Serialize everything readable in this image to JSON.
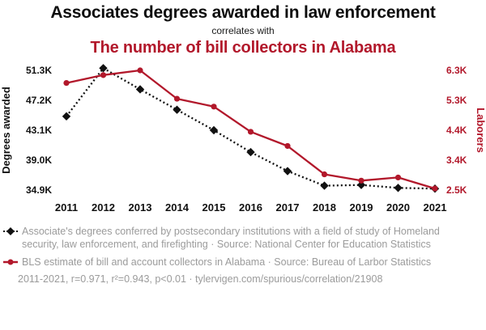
{
  "header": {
    "title": "Associates degrees awarded in law enforcement",
    "connector": "correlates with",
    "subtitle": "The number of bill collectors in Alabama"
  },
  "colors": {
    "accent_red": "#b2182b",
    "series_black": "#111111",
    "legend_gray": "#9b9b9b"
  },
  "chart_data": {
    "type": "line",
    "x": [
      2011,
      2012,
      2013,
      2014,
      2015,
      2016,
      2017,
      2018,
      2019,
      2020,
      2021
    ],
    "series": [
      {
        "name": "Degrees awarded",
        "slug": "degrees-awarded",
        "axis": "left",
        "color": "#111111",
        "style": "dotted",
        "marker": "diamond",
        "values": [
          45.0,
          51.6,
          48.7,
          45.9,
          43.1,
          40.1,
          37.5,
          35.5,
          35.6,
          35.2,
          35.1
        ]
      },
      {
        "name": "Laborers",
        "slug": "bill-collectors",
        "axis": "right",
        "color": "#b2182b",
        "style": "solid",
        "marker": "circle",
        "values": [
          5.9,
          6.15,
          6.3,
          5.4,
          5.15,
          4.35,
          3.9,
          3.0,
          2.8,
          2.9,
          2.55
        ]
      }
    ],
    "left_axis": {
      "label": "Degrees awarded",
      "ticks": [
        "51.3K",
        "47.2K",
        "43.1K",
        "39.0K",
        "34.9K"
      ],
      "min": 34.9,
      "max": 51.3,
      "unit": "K"
    },
    "right_axis": {
      "label": "Laborers",
      "ticks": [
        "6.3K",
        "5.3K",
        "4.4K",
        "3.4K",
        "2.5K"
      ],
      "min": 2.5,
      "max": 6.3,
      "unit": "K"
    },
    "grid": false,
    "legend_position": "below"
  },
  "legend": [
    {
      "text": "Associate's degrees conferred by postsecondary institutions with a field of study of Homeland security, law enforcement, and firefighting · Source: National Center for Education Statistics"
    },
    {
      "text": "BLS estimate of bill and account collectors in Alabama · Source: Bureau of Larbor Statistics"
    }
  ],
  "footer": {
    "text": "2011-2021, r=0.971, r²=0.943, p<0.01 · tylervigen.com/spurious/correlation/21908"
  }
}
